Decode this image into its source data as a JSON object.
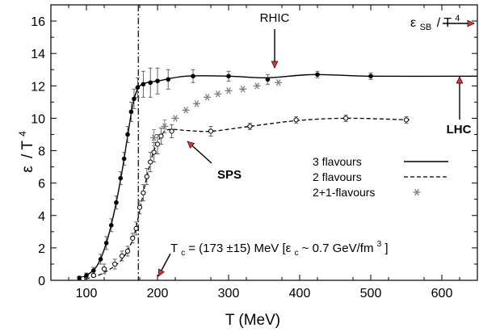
{
  "chart_data": {
    "type": "scatter",
    "title": "",
    "xlabel": "T (MeV)",
    "ylabel_main": "ε",
    "ylabel_tail": "/ T",
    "ylabel_exp": "4",
    "xlim": [
      50,
      650
    ],
    "ylim": [
      0,
      17
    ],
    "xticks": [
      100,
      200,
      300,
      400,
      500,
      600
    ],
    "yticks": [
      0,
      2,
      4,
      6,
      8,
      10,
      12,
      14,
      16
    ],
    "grid": false,
    "tc_line_x": 173,
    "series": [
      {
        "name": "3 flavours",
        "marker": "filled-circle",
        "line": "solid",
        "points": [
          {
            "x": 90,
            "y": 0.15,
            "err": 0.1
          },
          {
            "x": 100,
            "y": 0.3,
            "err": 0.15
          },
          {
            "x": 110,
            "y": 0.6,
            "err": 0.2
          },
          {
            "x": 120,
            "y": 1.3,
            "err": 0.3
          },
          {
            "x": 128,
            "y": 2.3,
            "err": 0.4
          },
          {
            "x": 135,
            "y": 3.4,
            "err": 0.4
          },
          {
            "x": 142,
            "y": 4.8,
            "err": 0.4
          },
          {
            "x": 148,
            "y": 6.3,
            "err": 0.4
          },
          {
            "x": 153,
            "y": 7.5,
            "err": 0.4
          },
          {
            "x": 158,
            "y": 9.0,
            "err": 0.5
          },
          {
            "x": 163,
            "y": 10.4,
            "err": 0.6
          },
          {
            "x": 167,
            "y": 11.2,
            "err": 0.6
          },
          {
            "x": 172,
            "y": 11.9,
            "err": 0.6
          },
          {
            "x": 180,
            "y": 12.1,
            "err": 0.8
          },
          {
            "x": 190,
            "y": 12.2,
            "err": 0.9
          },
          {
            "x": 200,
            "y": 12.3,
            "err": 0.8
          },
          {
            "x": 215,
            "y": 12.4,
            "err": 0.6
          },
          {
            "x": 250,
            "y": 12.6,
            "err": 0.4
          },
          {
            "x": 300,
            "y": 12.6,
            "err": 0.3
          },
          {
            "x": 355,
            "y": 12.4,
            "err": 0.3
          },
          {
            "x": 425,
            "y": 12.7,
            "err": 0.2
          },
          {
            "x": 500,
            "y": 12.6,
            "err": 0.2
          }
        ],
        "curve": [
          [
            88,
            0.1
          ],
          [
            100,
            0.3
          ],
          [
            115,
            0.9
          ],
          [
            128,
            2.3
          ],
          [
            140,
            4.4
          ],
          [
            150,
            6.7
          ],
          [
            158,
            8.9
          ],
          [
            165,
            10.8
          ],
          [
            170,
            11.6
          ],
          [
            175,
            12.0
          ],
          [
            185,
            12.2
          ],
          [
            200,
            12.3
          ],
          [
            240,
            12.6
          ],
          [
            300,
            12.6
          ],
          [
            355,
            12.5
          ],
          [
            420,
            12.7
          ],
          [
            500,
            12.6
          ],
          [
            650,
            12.6
          ]
        ]
      },
      {
        "name": "2 flavours",
        "marker": "open-circle",
        "line": "dashed",
        "points": [
          {
            "x": 95,
            "y": 0.1,
            "err": 0.05
          },
          {
            "x": 110,
            "y": 0.3,
            "err": 0.1
          },
          {
            "x": 125,
            "y": 0.7,
            "err": 0.3
          },
          {
            "x": 140,
            "y": 1.0,
            "err": 0.3
          },
          {
            "x": 150,
            "y": 1.5,
            "err": 0.3
          },
          {
            "x": 158,
            "y": 1.8,
            "err": 0.3
          },
          {
            "x": 165,
            "y": 2.6,
            "err": 0.3
          },
          {
            "x": 170,
            "y": 3.2,
            "err": 0.4
          },
          {
            "x": 175,
            "y": 4.5,
            "err": 0.4
          },
          {
            "x": 180,
            "y": 5.4,
            "err": 0.5
          },
          {
            "x": 185,
            "y": 6.4,
            "err": 0.5
          },
          {
            "x": 190,
            "y": 7.3,
            "err": 0.6
          },
          {
            "x": 195,
            "y": 7.9,
            "err": 0.6
          },
          {
            "x": 200,
            "y": 8.4,
            "err": 0.6
          },
          {
            "x": 205,
            "y": 8.9,
            "err": 0.5
          },
          {
            "x": 220,
            "y": 9.2,
            "err": 0.4
          },
          {
            "x": 275,
            "y": 9.2,
            "err": 0.3
          },
          {
            "x": 330,
            "y": 9.5,
            "err": 0.2
          },
          {
            "x": 395,
            "y": 9.9,
            "err": 0.2
          },
          {
            "x": 465,
            "y": 10.0,
            "err": 0.2
          },
          {
            "x": 550,
            "y": 9.9,
            "err": 0.2
          }
        ],
        "curve": [
          [
            90,
            0.05
          ],
          [
            110,
            0.2
          ],
          [
            130,
            0.6
          ],
          [
            150,
            1.3
          ],
          [
            165,
            2.5
          ],
          [
            175,
            4.3
          ],
          [
            185,
            6.4
          ],
          [
            195,
            8.0
          ],
          [
            205,
            8.9
          ],
          [
            215,
            9.3
          ],
          [
            240,
            9.25
          ],
          [
            275,
            9.2
          ],
          [
            330,
            9.5
          ],
          [
            395,
            9.85
          ],
          [
            465,
            10.0
          ],
          [
            555,
            9.9
          ]
        ]
      },
      {
        "name": "2+1-flavours",
        "marker": "star",
        "line": "none",
        "points": [
          {
            "x": 195,
            "y": 8.8,
            "err": 0.5
          },
          {
            "x": 210,
            "y": 9.5,
            "err": 0.4
          },
          {
            "x": 225,
            "y": 10.0
          },
          {
            "x": 240,
            "y": 10.5
          },
          {
            "x": 255,
            "y": 10.9
          },
          {
            "x": 270,
            "y": 11.3
          },
          {
            "x": 285,
            "y": 11.5
          },
          {
            "x": 300,
            "y": 11.7
          },
          {
            "x": 320,
            "y": 11.8
          },
          {
            "x": 340,
            "y": 12.0
          },
          {
            "x": 370,
            "y": 12.2
          }
        ]
      }
    ],
    "legend": {
      "placement": "right-middle",
      "entries": [
        "3 flavours",
        "2 flavours",
        "2+1-flavours"
      ]
    },
    "annotations": {
      "rhic": "RHIC",
      "lhc": "LHC",
      "sps": "SPS",
      "sb_epsilon": "ε",
      "sb_sub": "SB",
      "sb_tail": "/ T",
      "sb_exp": "4",
      "tc_part1": "T",
      "tc_sub": "c",
      "tc_part2": " = (173 ±15) MeV [ε",
      "tc_sub2": "c",
      "tc_part3": " ~ 0.7 GeV/fm",
      "tc_exp": "3",
      "tc_part4": "]"
    },
    "colors": {
      "axis": "#000000",
      "series_3f": "#000000",
      "series_2f": "#000000",
      "series_21f": "#7f7f7f",
      "arrow_head": "#e03030"
    }
  }
}
